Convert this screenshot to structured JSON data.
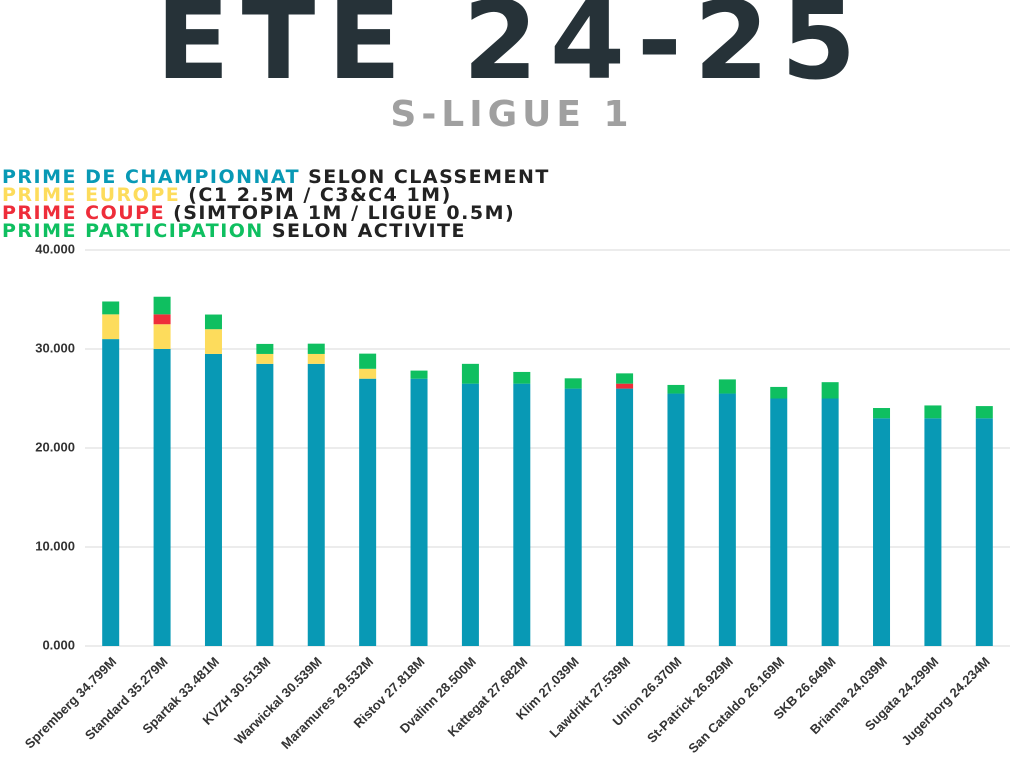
{
  "chart_data": {
    "type": "stacked_bar",
    "title": "ETE 24-25",
    "subtitle": "S-LIGUE 1",
    "categories": [
      "Spremberg 34.799M",
      "Standard 35.279M",
      "Spartak 33.481M",
      "KVZH 30.513M",
      "Warwickal 30.539M",
      "Maramures 29.532M",
      "Ristov 27.818M",
      "Dvalinn 28.500M",
      "Kattegat 27.682M",
      "Klim 27.039M",
      "Lawdrikt 27.539M",
      "Union 26.370M",
      "St-Patrick 26.929M",
      "San Cataldo 26.169M",
      "SKB 26.649M",
      "Brianna 24.039M",
      "Sugata 24.299M",
      "Jugerborg 24.234M"
    ],
    "series": [
      {
        "name": "PRIME DE CHAMPIONNAT",
        "note": "SELON CLASSEMENT",
        "color": "#0899b5",
        "values": [
          31,
          30,
          29.5,
          28.5,
          28.5,
          27,
          27,
          26.5,
          26.5,
          26,
          26,
          25.5,
          25.5,
          25,
          25,
          23,
          23,
          23
        ]
      },
      {
        "name": "PRIME EUROPE",
        "note": "(C1 2.5M / C3&C4 1M)",
        "color": "#fddc5c",
        "values": [
          2.5,
          2.5,
          2.5,
          1,
          1,
          1,
          0,
          0,
          0,
          0,
          0,
          0,
          0,
          0,
          0,
          0,
          0,
          0
        ]
      },
      {
        "name": "PRIME COUPE",
        "note": "(SIMTOPIA 1M / LIGUE 0.5M)",
        "color": "#ee2d3a",
        "values": [
          0,
          1,
          0,
          0,
          0,
          0,
          0,
          0,
          0,
          0,
          0.5,
          0,
          0,
          0,
          0,
          0,
          0,
          0
        ]
      },
      {
        "name": "PRIME PARTICIPATION",
        "note": "SELON ACTIVITE",
        "color": "#0fbf60",
        "values": [
          1.299,
          1.779,
          1.481,
          1.013,
          1.039,
          1.532,
          0.818,
          2.0,
          1.182,
          1.039,
          1.039,
          0.87,
          1.429,
          1.169,
          1.649,
          1.039,
          1.299,
          1.234
        ]
      }
    ],
    "ylim": [
      0,
      40
    ],
    "yticks": [
      {
        "value": 0,
        "label": "0.000"
      },
      {
        "value": 10,
        "label": "10.000"
      },
      {
        "value": 20,
        "label": "20.000"
      },
      {
        "value": 30,
        "label": "30.000"
      },
      {
        "value": 40,
        "label": "40.000"
      }
    ],
    "grid": true
  }
}
